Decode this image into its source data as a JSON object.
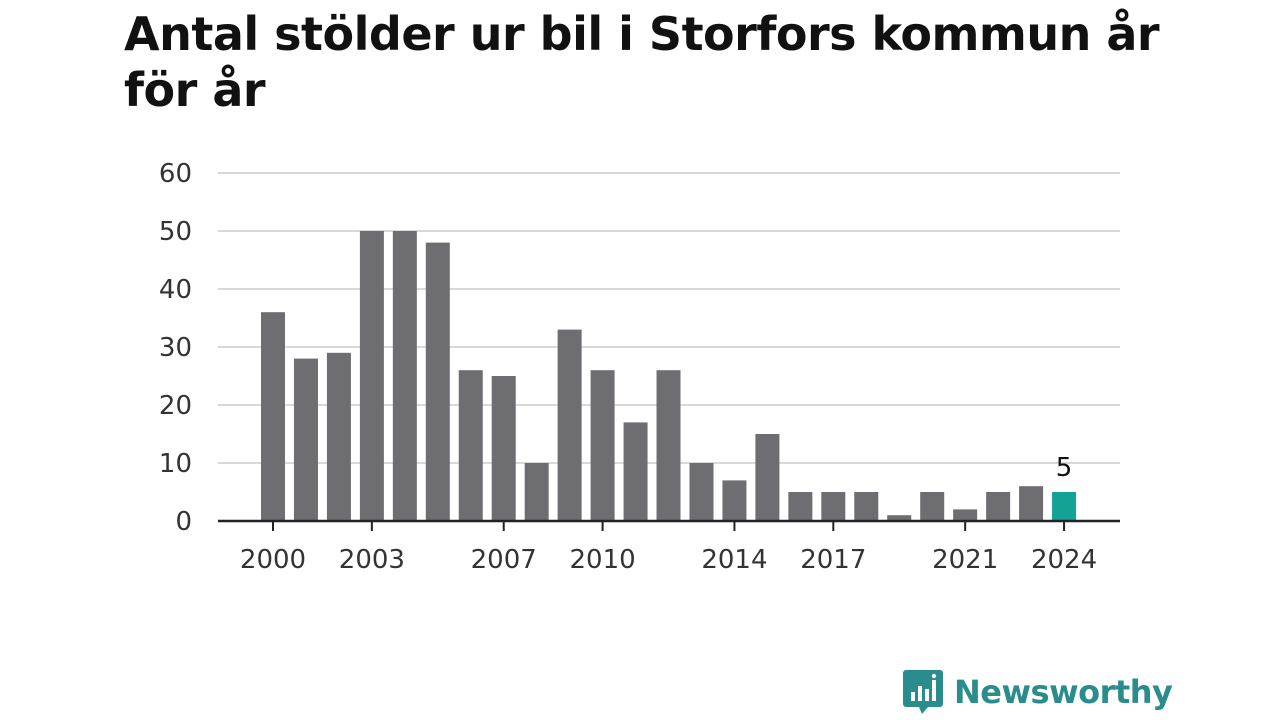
{
  "title": "Antal stölder ur bil i Storfors kommun år för år",
  "brand": {
    "name": "Newsworthy",
    "color": "#2a8c8c",
    "icon": "newsworthy-logo-icon"
  },
  "colors": {
    "bar": "#6e6d72",
    "highlight": "#13a294",
    "grid": "#d9d9d9",
    "axis": "#222222"
  },
  "chart_data": {
    "type": "bar",
    "title": "Antal stölder ur bil i Storfors kommun år för år",
    "xlabel": "",
    "ylabel": "",
    "categories": [
      2000,
      2001,
      2002,
      2003,
      2004,
      2005,
      2006,
      2007,
      2008,
      2009,
      2010,
      2011,
      2012,
      2013,
      2014,
      2015,
      2016,
      2017,
      2018,
      2019,
      2020,
      2021,
      2022,
      2023,
      2024
    ],
    "values": [
      36,
      28,
      29,
      50,
      50,
      48,
      26,
      25,
      10,
      33,
      26,
      17,
      26,
      10,
      7,
      15,
      5,
      5,
      5,
      1,
      5,
      2,
      5,
      6,
      5
    ],
    "x_tick_labels": [
      "2000",
      "2003",
      "2007",
      "2010",
      "2014",
      "2017",
      "2021",
      "2024"
    ],
    "y_ticks": [
      0,
      10,
      20,
      30,
      40,
      50,
      60
    ],
    "ylim": [
      0,
      60
    ],
    "grid": true,
    "legend": "none",
    "highlight": {
      "category": 2024,
      "label": "5"
    }
  }
}
